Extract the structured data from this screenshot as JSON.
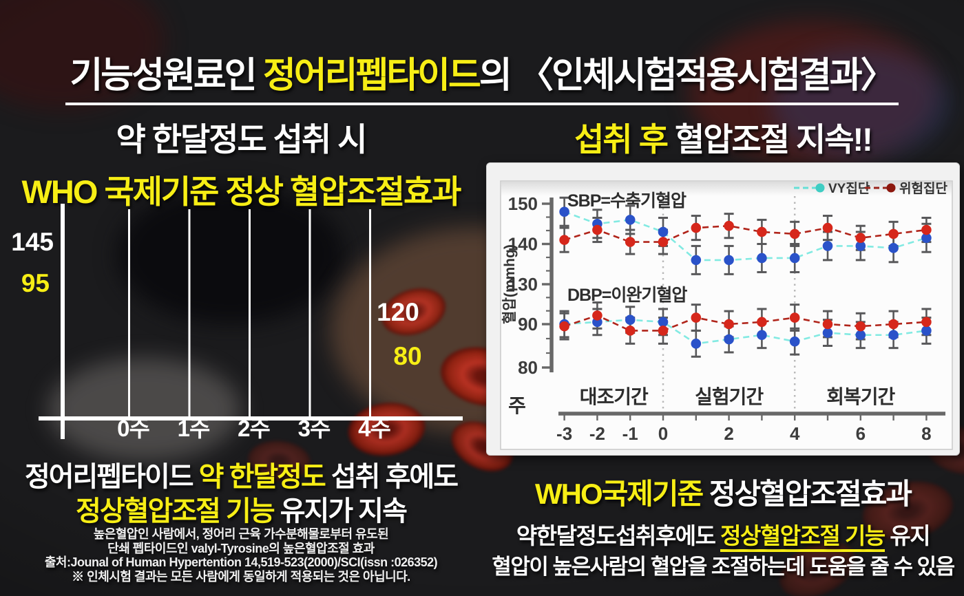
{
  "title": {
    "part1": "기능성원료인 ",
    "highlight": "정어리펩타이드",
    "part2": "의 〈인체시험적용시험결과〉"
  },
  "left": {
    "headline_white": "약 한달정도 섭취 시",
    "headline_yellow": "WHO 국제기준 정상 혈압조절효과",
    "result_line1": {
      "w1": "정어리펩타이드 ",
      "y": "약 한달정도",
      "w2": " 섭취 후에도"
    },
    "result_line2": {
      "y": "정상혈압조절 기능",
      "w": " 유지가 지속"
    },
    "footnotes": [
      "높은혈압인 사람에서, 정어리 근육 가수분해물로부터 유도된",
      "단쇄 펩타이드인 valyl-Tyrosine의 높은혈압조절 효과",
      "출처:Jounal of Human Hypertention 14,519-523(2000)/SCI(issn :026352)",
      "※ 인체시험 결과는 모든 사람에게 동일하게 적용되는 것은 아닙니다."
    ]
  },
  "right": {
    "headline_yellow": "섭취 후",
    "headline_white": " 혈압조절 지속!!",
    "result_line1": {
      "y": "WHO국제기준 ",
      "w": "정상혈압조절효과"
    },
    "result_line2": {
      "w1": "약한달정도섭취후에도 ",
      "y": "정상혈압조절 기능",
      "w2": " 유지"
    },
    "result_line3": "혈압이 높은사람의 혈압을 조절하는데 도움을 줄 수 있음"
  },
  "palette": {
    "yellow": "#f7ee15",
    "white": "#ffffff",
    "background": "#1b1b1d",
    "panel": "#f1f1f1",
    "blue_dot": "#2a52c9",
    "red_dot": "#d6271b",
    "cyan_line": "#82eae2",
    "darkred_line": "#b0241a",
    "error_bar": "#58585a",
    "axis_gray": "#686868"
  },
  "chart_data": [
    {
      "id": "intake-grid",
      "type": "line",
      "note": "decorative week grid: blood pressure 145/95 at start drops to 120/80 after 4 weeks; no plotted series, grid lines only",
      "categories": [
        "0주",
        "1주",
        "2주",
        "3주",
        "4주"
      ],
      "series": [],
      "start_labels": [
        {
          "text": "145",
          "color": "#ffffff"
        },
        {
          "text": "95",
          "color": "#f7ee15"
        }
      ],
      "end_labels": [
        {
          "text": "120",
          "color": "#ffffff"
        },
        {
          "text": "80",
          "color": "#f7ee15"
        }
      ],
      "grid": true,
      "legend_position": "none"
    },
    {
      "id": "clinical",
      "type": "line",
      "xlabel": "주",
      "ylabel": "혈압(mmhg)",
      "axis_break": true,
      "x": [
        -3,
        -2,
        -1,
        0,
        1,
        2,
        3,
        4,
        5,
        6,
        7,
        8
      ],
      "x_tick_values": [
        -3,
        -2,
        -1,
        0,
        2,
        4,
        6,
        8
      ],
      "y_ticks_top": [
        150,
        140,
        130
      ],
      "y_ticks_bottom": [
        90,
        80
      ],
      "ylim_top": [
        128,
        152
      ],
      "ylim_bottom": [
        78,
        97
      ],
      "separators": [
        0,
        4
      ],
      "periods": [
        {
          "label": "대조기간",
          "from": -3,
          "to": 0
        },
        {
          "label": "실험기간",
          "from": 0,
          "to": 4
        },
        {
          "label": "회복기간",
          "from": 4,
          "to": 8
        }
      ],
      "annotations": {
        "sbp": "SBP=수축기혈압",
        "dbp": "DBP=이완기혈압"
      },
      "legend": [
        {
          "name": "VY집단",
          "color": "#66dfd6",
          "dot": "#3fcdc3"
        },
        {
          "name": "위험집단",
          "color": "#99231a",
          "dot": "#8c170d"
        }
      ],
      "legend_position": "top-right",
      "series": [
        {
          "name": "VY집단 SBP",
          "group": "VY집단",
          "section": "SBP",
          "color_line": "#82eae2",
          "color_dot": "#2a52c9",
          "err": 3.5,
          "values": [
            148,
            145,
            146,
            143,
            136,
            136,
            136.5,
            136.5,
            139.5,
            139.5,
            139,
            141.5
          ]
        },
        {
          "name": "위험집단 SBP",
          "group": "위험집단",
          "section": "SBP",
          "color_line": "#b0241a",
          "color_dot": "#d6271b",
          "err": 3,
          "values": [
            141,
            143.5,
            140.5,
            140.5,
            144,
            144.5,
            143,
            142.5,
            144,
            141.5,
            142.5,
            143.5
          ]
        },
        {
          "name": "VY집단 DBP",
          "group": "VY집단",
          "section": "DBP",
          "color_line": "#82eae2",
          "color_dot": "#2a52c9",
          "err": 3,
          "values": [
            90,
            90.5,
            91,
            90.5,
            85.5,
            86.5,
            87.5,
            86,
            88,
            87.5,
            87.5,
            88.5
          ]
        },
        {
          "name": "위험집단 DBP",
          "group": "위험집단",
          "section": "DBP",
          "color_line": "#b0241a",
          "color_dot": "#d6271b",
          "err": 3,
          "values": [
            89.5,
            92,
            88.5,
            88.5,
            91.5,
            90,
            90.5,
            91.5,
            90,
            89.5,
            90,
            90.5
          ]
        }
      ]
    }
  ]
}
